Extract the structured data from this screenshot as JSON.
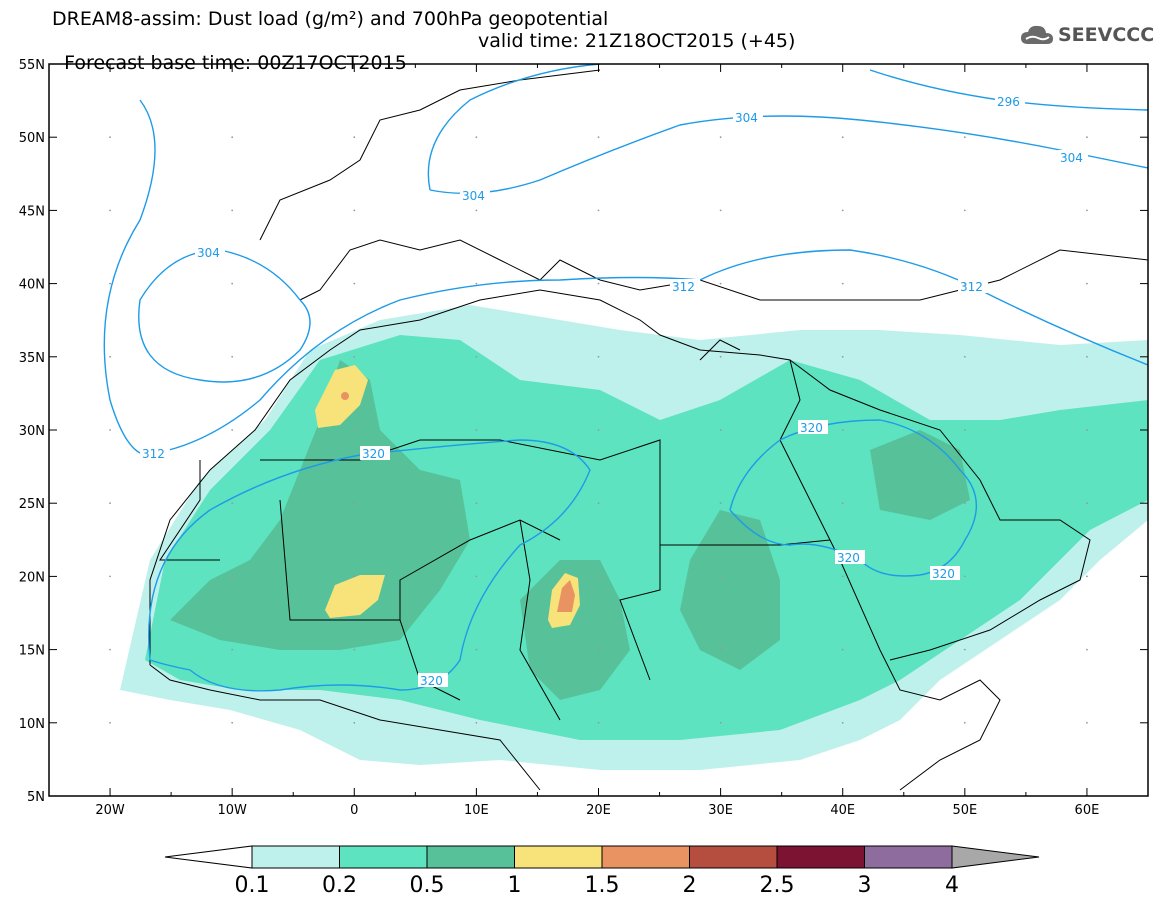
{
  "header": {
    "title_line1": "DREAM8-assim: Dust load (g/m²) and 700hPa geopotential",
    "base_time": "Forecast base time: 00Z17OCT2015",
    "valid_time": "valid time: 21Z18OCT2015 (+45)"
  },
  "logo": {
    "text": "SEEVCCC",
    "icon": "cloud-icon"
  },
  "map": {
    "projection": "lat-lon",
    "lon_range": [
      -25,
      65
    ],
    "lat_range": [
      5,
      55
    ],
    "lon_ticks": [
      "20W",
      "10W",
      "0",
      "10E",
      "20E",
      "30E",
      "40E",
      "50E",
      "60E"
    ],
    "lat_ticks": [
      "55N",
      "50N",
      "45N",
      "40N",
      "35N",
      "30N",
      "25N",
      "20N",
      "15N",
      "10N",
      "5N"
    ],
    "contour_color": "#1e9be8",
    "contour_labels": [
      "304",
      "304",
      "304",
      "296",
      "304",
      "312",
      "312",
      "312",
      "320",
      "320",
      "320",
      "320",
      "320"
    ]
  },
  "colorbar": {
    "levels": [
      "0.1",
      "0.2",
      "0.5",
      "1",
      "1.5",
      "2",
      "2.5",
      "3",
      "4"
    ],
    "colors": [
      "#ffffff",
      "#bff1ec",
      "#5de3bf",
      "#57c199",
      "#f7e37a",
      "#e99262",
      "#b64e3f",
      "#7d1332",
      "#8e6d9e",
      "#a8a8a8"
    ]
  }
}
